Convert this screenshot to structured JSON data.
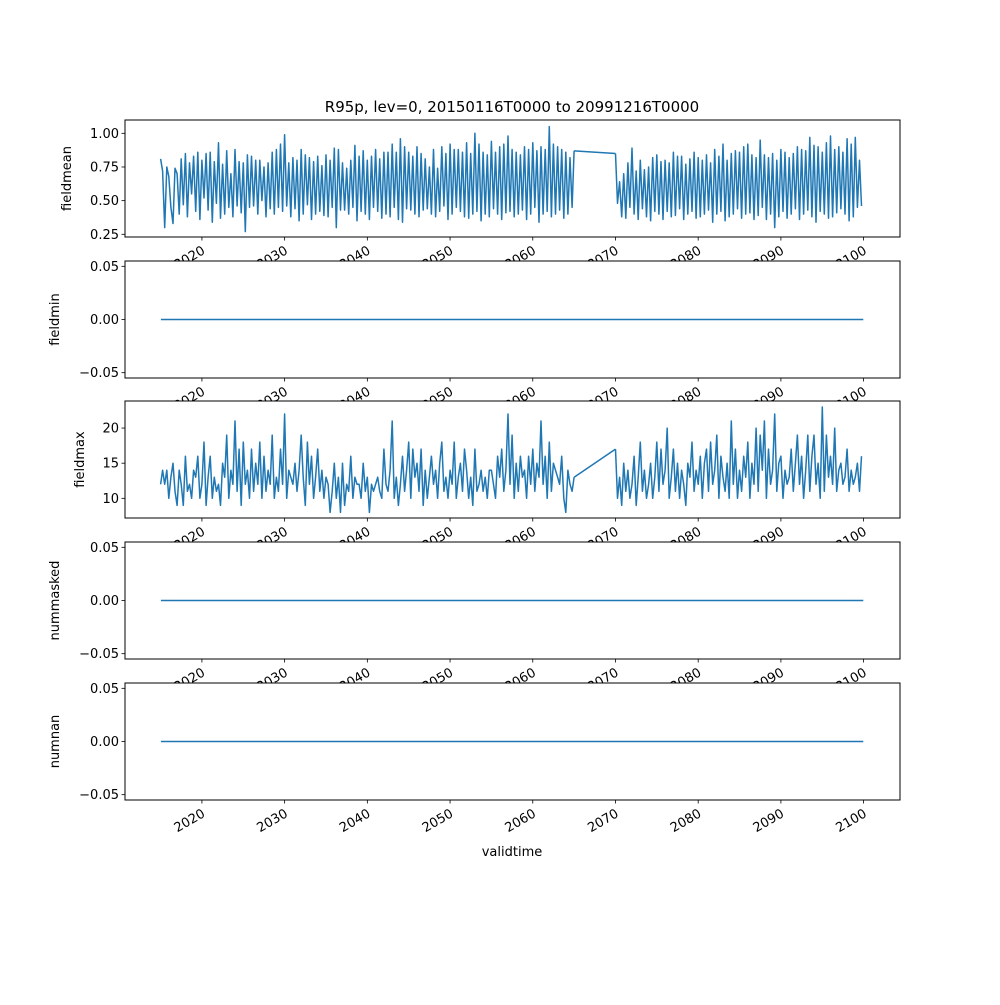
{
  "chart_data": {
    "type": "line",
    "title": "R95p, lev=0, 20150116T0000 to 20991216T0000",
    "xlabel": "validtime",
    "xlim": [
      2010.7,
      2104.4
    ],
    "xticks": [
      2020,
      2030,
      2040,
      2050,
      2060,
      2070,
      2080,
      2090,
      2100
    ],
    "xtick_labels": [
      "2020",
      "2030",
      "2040",
      "2050",
      "2060",
      "2070",
      "2080",
      "2090",
      "2100"
    ],
    "line_color": "#1f77b4",
    "grid": false,
    "panels": [
      {
        "ylabel": "fieldmean",
        "ylim": [
          0.23,
          1.099
        ],
        "yticks": [
          0.25,
          0.5,
          0.75,
          1.0
        ],
        "ytick_labels": [
          "0.25",
          "0.50",
          "0.75",
          "1.00"
        ],
        "segments": [
          {
            "start": 2015.0,
            "step": 0.25,
            "values": [
              0.81,
              0.72,
              0.3,
              0.75,
              0.68,
              0.45,
              0.33,
              0.74,
              0.7,
              0.4,
              0.81,
              0.47,
              0.85,
              0.38,
              0.78,
              0.55,
              0.83,
              0.42,
              0.86,
              0.36,
              0.8,
              0.52,
              0.85,
              0.43,
              0.86,
              0.34,
              0.79,
              0.48,
              0.93,
              0.37,
              0.77,
              0.4,
              0.87,
              0.45,
              0.7,
              0.38,
              0.88,
              0.46,
              0.79,
              0.41,
              0.78,
              0.27,
              0.84,
              0.45,
              0.83,
              0.46,
              0.8,
              0.4,
              0.8,
              0.5,
              0.75,
              0.38,
              0.78,
              0.44,
              0.86,
              0.4,
              0.88,
              0.45,
              0.92,
              0.42,
              0.99,
              0.46,
              0.78,
              0.38,
              0.82,
              0.44,
              0.8,
              0.35,
              0.88,
              0.4,
              0.84,
              0.47,
              0.82,
              0.36,
              0.79,
              0.4,
              0.83,
              0.42,
              0.76,
              0.39,
              0.84,
              0.38,
              0.8,
              0.45,
              0.89,
              0.3,
              0.88,
              0.43,
              0.78,
              0.43,
              0.74,
              0.4,
              0.8,
              0.45,
              0.91,
              0.35,
              0.83,
              0.42,
              0.87,
              0.4,
              0.8,
              0.36,
              0.83,
              0.45,
              0.88,
              0.42,
              0.81,
              0.37,
              0.86,
              0.4,
              0.86,
              0.38,
              0.92,
              0.45,
              0.86,
              0.36,
              0.96,
              0.34,
              0.9,
              0.44,
              0.86,
              0.43,
              0.83,
              0.4,
              0.9,
              0.38,
              0.85,
              0.43,
              0.81,
              0.44,
              0.75,
              0.4,
              0.88,
              0.38,
              0.74,
              0.42,
              0.9,
              0.46,
              0.85,
              0.36,
              0.92,
              0.4,
              0.88,
              0.45,
              0.88,
              0.42,
              0.86,
              0.38,
              0.93,
              0.37,
              0.85,
              0.4,
              1.0,
              0.42,
              0.92,
              0.35,
              0.86,
              0.4,
              0.84,
              0.38,
              0.94,
              0.44,
              0.86,
              0.4,
              0.9,
              0.36,
              0.92,
              0.41,
              0.98,
              0.42,
              0.88,
              0.38,
              0.86,
              0.4,
              0.84,
              0.43,
              0.9,
              0.36,
              0.88,
              0.4,
              0.93,
              0.45,
              0.87,
              0.34,
              0.9,
              0.4,
              0.88,
              0.42,
              1.05,
              0.38,
              0.92,
              0.4,
              0.9,
              0.43,
              0.88,
              0.37,
              0.86,
              0.4,
              0.82,
              0.45,
              0.87
            ]
          },
          {
            "start": 2070.0,
            "step": 0.25,
            "values": [
              0.85,
              0.48,
              0.64,
              0.38,
              0.7,
              0.37,
              0.78,
              0.45,
              0.89,
              0.4,
              0.72,
              0.36,
              0.8,
              0.44,
              0.73,
              0.38,
              0.75,
              0.35,
              0.82,
              0.42,
              0.84,
              0.4,
              0.79,
              0.36,
              0.8,
              0.42,
              0.78,
              0.38,
              0.86,
              0.39,
              0.83,
              0.44,
              0.83,
              0.36,
              0.77,
              0.4,
              0.81,
              0.42,
              0.86,
              0.37,
              0.82,
              0.38,
              0.8,
              0.4,
              0.84,
              0.43,
              0.78,
              0.34,
              0.88,
              0.4,
              0.83,
              0.42,
              0.92,
              0.35,
              0.8,
              0.38,
              0.85,
              0.4,
              0.87,
              0.44,
              0.86,
              0.37,
              0.9,
              0.4,
              0.92,
              0.41,
              0.84,
              0.36,
              0.82,
              0.39,
              0.95,
              0.45,
              0.84,
              0.36,
              0.82,
              0.4,
              0.85,
              0.3,
              0.8,
              0.38,
              0.88,
              0.42,
              0.86,
              0.37,
              0.82,
              0.4,
              0.85,
              0.44,
              0.9,
              0.36,
              0.88,
              0.4,
              0.87,
              0.43,
              0.97,
              0.38,
              0.91,
              0.34,
              0.9,
              0.42,
              0.86,
              0.4,
              0.93,
              0.37,
              0.98,
              0.38,
              0.88,
              0.41,
              0.9,
              0.44,
              0.86,
              0.4,
              0.96,
              0.35,
              0.92,
              0.38,
              0.97,
              0.45,
              0.8,
              0.46
            ]
          }
        ]
      },
      {
        "ylabel": "fieldmin",
        "ylim": [
          -0.055,
          0.055
        ],
        "yticks": [
          -0.05,
          0.0,
          0.05
        ],
        "ytick_labels": [
          "−0.05",
          "0.00",
          "0.05"
        ],
        "segments": [
          {
            "x": [
              2015.04,
              2099.96
            ],
            "values": [
              0,
              0
            ]
          }
        ]
      },
      {
        "ylabel": "fieldmax",
        "ylim": [
          7.2,
          23.85
        ],
        "yticks": [
          10,
          15,
          20
        ],
        "ytick_labels": [
          "10",
          "15",
          "20"
        ],
        "segments": [
          {
            "start": 2015.0,
            "step": 0.25,
            "values": [
              12,
              14,
              12,
              14,
              10,
              13,
              15,
              11,
              9,
              14,
              12,
              9,
              16,
              11,
              12,
              10,
              14,
              13,
              16,
              10,
              12,
              18,
              9,
              13,
              16,
              10,
              13,
              11,
              12,
              9,
              15,
              13,
              19,
              10,
              14,
              12,
              21,
              11,
              17,
              9,
              18,
              12,
              14,
              10,
              17,
              11,
              15,
              12,
              18,
              10,
              16,
              11,
              14,
              12,
              19,
              10,
              13,
              11,
              17,
              12,
              22,
              10,
              14,
              13,
              12,
              15,
              11,
              14,
              19,
              13,
              9,
              18,
              12,
              16,
              10,
              13,
              17,
              11,
              14,
              10,
              13,
              12,
              8,
              11,
              15,
              10,
              13,
              8,
              15,
              9,
              12,
              11,
              16,
              10,
              13,
              12,
              12,
              10,
              15,
              11,
              13,
              8,
              12,
              11,
              12,
              13,
              11,
              10,
              17,
              12,
              11,
              14,
              21,
              10,
              13,
              9,
              12,
              16,
              11,
              14,
              18,
              10,
              17,
              13,
              15,
              11,
              17,
              9,
              14,
              10,
              13,
              16,
              12,
              14,
              10,
              15,
              18,
              11,
              13,
              10,
              14,
              12,
              18,
              10,
              13,
              15,
              11,
              17,
              14,
              10,
              13,
              9,
              17,
              11,
              12,
              14,
              11,
              13,
              10,
              14,
              14,
              12,
              10,
              16,
              13,
              17,
              11,
              14,
              22,
              12,
              19,
              10,
              15,
              11,
              16,
              13,
              14,
              10,
              16,
              12,
              17,
              11,
              15,
              13,
              21,
              12,
              16,
              10,
              18,
              11,
              15,
              14,
              13,
              12,
              16,
              10,
              8,
              14,
              12,
              11,
              13
            ]
          },
          {
            "start": 2070.0,
            "step": 0.25,
            "values": [
              17,
              10,
              13,
              9,
              15,
              11,
              14,
              10,
              12,
              16,
              9,
              13,
              18,
              11,
              14,
              10,
              12,
              15,
              10,
              13,
              18,
              11,
              17,
              12,
              14,
              20,
              10,
              13,
              17,
              11,
              15,
              10,
              14,
              12,
              9,
              15,
              13,
              18,
              11,
              14,
              12,
              16,
              10,
              15,
              17,
              11,
              18,
              12,
              14,
              19,
              10,
              16,
              13,
              11,
              15,
              10,
              21,
              12,
              17,
              10,
              14,
              11,
              16,
              13,
              18,
              10,
              15,
              12,
              20,
              11,
              19,
              14,
              21,
              10,
              17,
              12,
              14,
              22,
              11,
              15,
              16,
              10,
              14,
              12,
              13,
              17,
              11,
              15,
              19,
              12,
              16,
              10,
              14,
              19,
              11,
              16,
              19,
              12,
              15,
              10,
              23,
              11,
              19,
              13,
              16,
              12,
              20,
              11,
              14,
              15,
              12,
              13,
              17,
              11,
              14,
              12,
              13,
              15,
              11,
              16
            ]
          }
        ]
      },
      {
        "ylabel": "nummasked",
        "ylim": [
          -0.055,
          0.055
        ],
        "yticks": [
          -0.05,
          0.0,
          0.05
        ],
        "ytick_labels": [
          "−0.05",
          "0.00",
          "0.05"
        ],
        "segments": [
          {
            "x": [
              2015.04,
              2099.96
            ],
            "values": [
              0,
              0
            ]
          }
        ]
      },
      {
        "ylabel": "numnan",
        "ylim": [
          -0.055,
          0.055
        ],
        "yticks": [
          -0.05,
          0.0,
          0.05
        ],
        "ytick_labels": [
          "−0.05",
          "0.00",
          "0.05"
        ],
        "segments": [
          {
            "x": [
              2015.04,
              2099.96
            ],
            "values": [
              0,
              0
            ]
          }
        ]
      }
    ]
  }
}
